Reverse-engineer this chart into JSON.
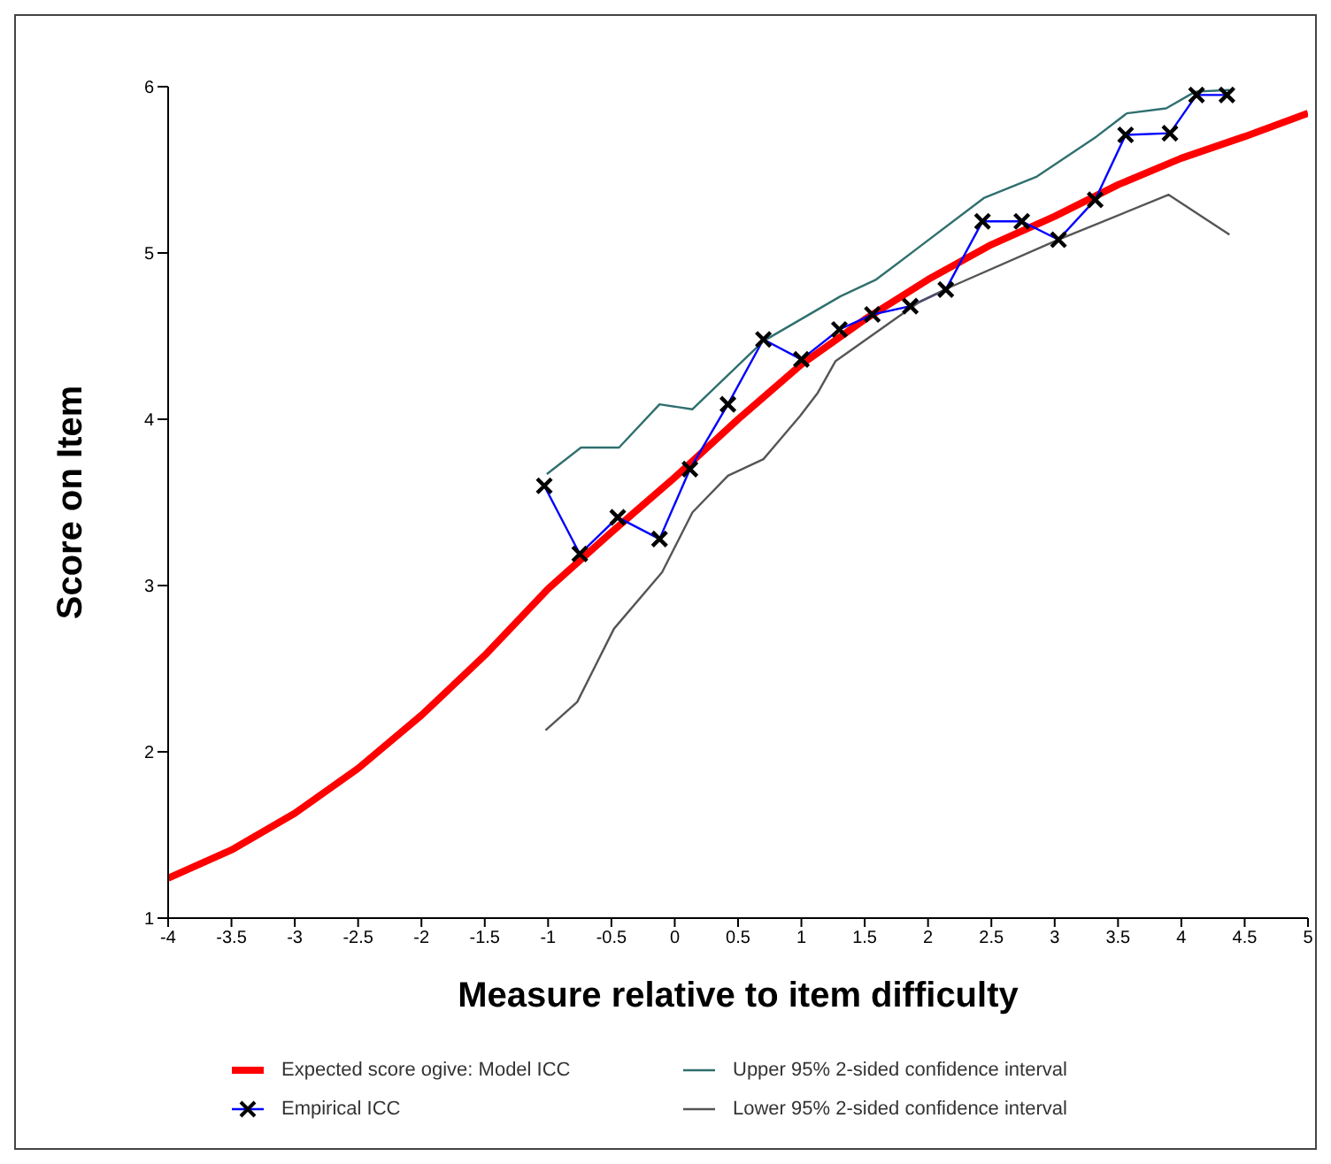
{
  "chart_data": {
    "type": "line",
    "xlabel": "Measure relative to item difficulty",
    "ylabel": "Score on Item",
    "xlim": [
      -4,
      5
    ],
    "xticks": [
      -4,
      -3.5,
      -3,
      -2.5,
      -2,
      -1.5,
      -1,
      -0.5,
      0,
      0.5,
      1,
      1.5,
      2,
      2.5,
      3,
      3.5,
      4,
      4.5,
      5
    ],
    "ylim": [
      1,
      6
    ],
    "yticks": [
      1,
      2,
      3,
      4,
      5,
      6
    ],
    "grid": false,
    "legend": "bottom",
    "series": [
      {
        "name": "Expected score ogive: Model ICC",
        "color": "#ff0000",
        "marker": "none",
        "x": [
          -4,
          -3.5,
          -3,
          -2.5,
          -2,
          -1.5,
          -1,
          -0.5,
          0,
          0.5,
          1,
          1.5,
          2,
          2.5,
          3,
          3.5,
          4,
          4.5,
          5
        ],
        "values": [
          1.24,
          1.41,
          1.63,
          1.9,
          2.22,
          2.58,
          2.98,
          3.32,
          3.65,
          4.0,
          4.33,
          4.6,
          4.84,
          5.05,
          5.22,
          5.41,
          5.57,
          5.7,
          5.84
        ]
      },
      {
        "name": "Empirical ICC",
        "color": "#0000ff",
        "marker": "cross",
        "x": [
          -1.03,
          -0.75,
          -0.45,
          -0.12,
          0.12,
          0.42,
          0.7,
          1.0,
          1.3,
          1.56,
          1.86,
          2.14,
          2.43,
          2.74,
          3.03,
          3.32,
          3.56,
          3.91,
          4.12,
          4.36
        ],
        "values": [
          3.6,
          3.19,
          3.41,
          3.28,
          3.7,
          4.09,
          4.48,
          4.36,
          4.54,
          4.63,
          4.68,
          4.78,
          5.19,
          5.19,
          5.08,
          5.32,
          5.71,
          5.72,
          5.95,
          5.95
        ]
      },
      {
        "name": "Upper 95% 2-sided confidence interval",
        "color": "#2f6f6f",
        "marker": "none",
        "x": [
          -1.01,
          -0.74,
          -0.44,
          -0.12,
          0.14,
          0.7,
          1.31,
          1.59,
          1.92,
          2.44,
          2.86,
          3.33,
          3.57,
          3.88,
          4.11,
          4.38
        ],
        "values": [
          3.67,
          3.83,
          3.83,
          4.09,
          4.06,
          4.47,
          4.74,
          4.84,
          5.03,
          5.33,
          5.46,
          5.7,
          5.84,
          5.87,
          5.97,
          5.98
        ]
      },
      {
        "name": "Lower 95% 2-sided confidence interval",
        "color": "#555555",
        "marker": "none",
        "x": [
          -1.02,
          -0.77,
          -0.48,
          -0.1,
          0.14,
          0.42,
          0.7,
          0.99,
          1.13,
          1.27,
          1.92,
          2.16,
          3.03,
          3.9,
          4.38
        ],
        "values": [
          2.13,
          2.3,
          2.74,
          3.08,
          3.44,
          3.66,
          3.76,
          4.02,
          4.16,
          4.35,
          4.7,
          4.79,
          5.08,
          5.35,
          5.11
        ]
      }
    ]
  }
}
